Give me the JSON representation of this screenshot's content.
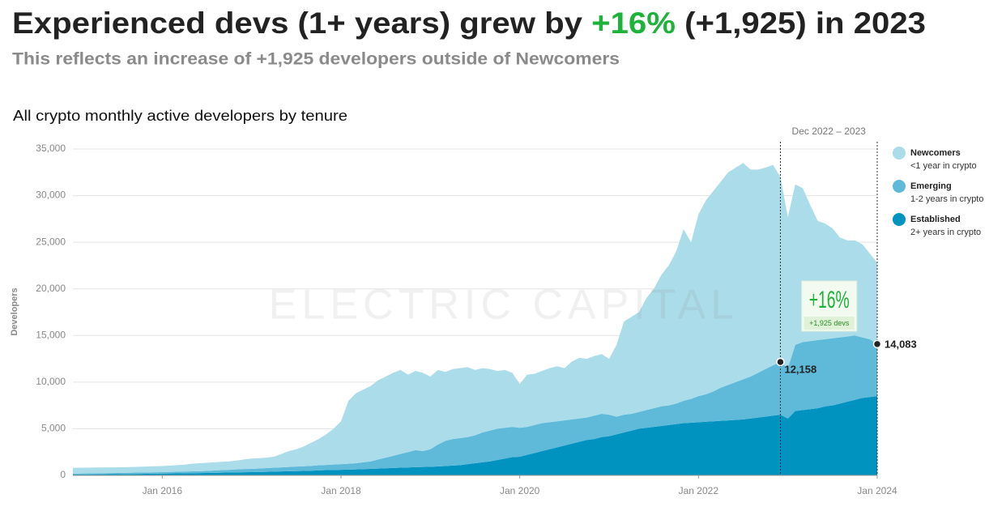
{
  "chart_data": {
    "type": "stacked_area",
    "title": "Experienced devs (1+ years) grew by +16% (+1,925) in 2023",
    "title_highlight": "+16%",
    "highlight_color": "#1db33a",
    "subtitle": "This reflects an increase of +1,925 developers outside of Newcomers",
    "chart_title": "All crypto monthly active developers by tenure",
    "y_label": "Developers",
    "watermark": "ELECTRIC CAPITAL",
    "x": [
      "2015-01",
      "2015-02",
      "2015-03",
      "2015-04",
      "2015-05",
      "2015-06",
      "2015-07",
      "2015-08",
      "2015-09",
      "2015-10",
      "2015-11",
      "2015-12",
      "2016-01",
      "2016-02",
      "2016-03",
      "2016-04",
      "2016-05",
      "2016-06",
      "2016-07",
      "2016-08",
      "2016-09",
      "2016-10",
      "2016-11",
      "2016-12",
      "2017-01",
      "2017-02",
      "2017-03",
      "2017-04",
      "2017-05",
      "2017-06",
      "2017-07",
      "2017-08",
      "2017-09",
      "2017-10",
      "2017-11",
      "2017-12",
      "2018-01",
      "2018-02",
      "2018-03",
      "2018-04",
      "2018-05",
      "2018-06",
      "2018-07",
      "2018-08",
      "2018-09",
      "2018-10",
      "2018-11",
      "2018-12",
      "2019-01",
      "2019-02",
      "2019-03",
      "2019-04",
      "2019-05",
      "2019-06",
      "2019-07",
      "2019-08",
      "2019-09",
      "2019-10",
      "2019-11",
      "2019-12",
      "2020-01",
      "2020-02",
      "2020-03",
      "2020-04",
      "2020-05",
      "2020-06",
      "2020-07",
      "2020-08",
      "2020-09",
      "2020-10",
      "2020-11",
      "2020-12",
      "2021-01",
      "2021-02",
      "2021-03",
      "2021-04",
      "2021-05",
      "2021-06",
      "2021-07",
      "2021-08",
      "2021-09",
      "2021-10",
      "2021-11",
      "2021-12",
      "2022-01",
      "2022-02",
      "2022-03",
      "2022-04",
      "2022-05",
      "2022-06",
      "2022-07",
      "2022-08",
      "2022-09",
      "2022-10",
      "2022-11",
      "2022-12",
      "2023-01",
      "2023-02",
      "2023-03",
      "2023-04",
      "2023-05",
      "2023-06",
      "2023-07",
      "2023-08",
      "2023-09",
      "2023-10",
      "2023-11",
      "2023-12",
      "2024-01"
    ],
    "series": [
      {
        "name": "Newcomers",
        "description": "<1 year in crypto",
        "color": "#abdce9",
        "values": [
          600,
          610,
          610,
          620,
          610,
          610,
          610,
          610,
          610,
          610,
          630,
          640,
          650,
          680,
          710,
          740,
          820,
          850,
          870,
          880,
          890,
          900,
          960,
          1020,
          1100,
          1110,
          1120,
          1180,
          1440,
          1700,
          1860,
          2120,
          2480,
          2820,
          3280,
          3840,
          4600,
          6750,
          7500,
          7800,
          8100,
          8500,
          8700,
          8900,
          9000,
          8300,
          8500,
          8400,
          7800,
          8000,
          7400,
          7500,
          7500,
          7500,
          7000,
          6900,
          6600,
          6200,
          6200,
          5800,
          4700,
          5600,
          5500,
          5600,
          5800,
          5900,
          5600,
          6200,
          6500,
          6300,
          6400,
          6400,
          6000,
          7700,
          10000,
          10400,
          10700,
          12000,
          12800,
          14100,
          15000,
          16300,
          18400,
          16800,
          19500,
          20800,
          21500,
          22100,
          22800,
          23000,
          23200,
          22200,
          21800,
          21600,
          21500,
          19842,
          16200,
          17200,
          16500,
          14600,
          12800,
          12400,
          11800,
          10700,
          10300,
          10200,
          10000,
          9200,
          8717
        ]
      },
      {
        "name": "Emerging",
        "description": "1-2 years in crypto",
        "color": "#5ebad8",
        "values": [
          100,
          105,
          110,
          115,
          120,
          125,
          130,
          130,
          140,
          150,
          150,
          160,
          150,
          160,
          170,
          180,
          190,
          200,
          220,
          250,
          270,
          290,
          320,
          340,
          350,
          380,
          400,
          420,
          440,
          460,
          480,
          500,
          520,
          550,
          560,
          580,
          600,
          630,
          660,
          730,
          800,
          970,
          1140,
          1310,
          1480,
          1650,
          1820,
          1700,
          1880,
          2350,
          2700,
          2850,
          2900,
          2900,
          3000,
          3200,
          3300,
          3350,
          3300,
          3250,
          3100,
          3000,
          3000,
          3000,
          2900,
          2800,
          2700,
          2600,
          2500,
          2400,
          2500,
          2500,
          2300,
          1900,
          1900,
          1800,
          1800,
          1900,
          2000,
          2100,
          2100,
          2200,
          2400,
          2550,
          2800,
          2950,
          3200,
          3550,
          3800,
          4050,
          4300,
          4500,
          4800,
          5100,
          5400,
          5658,
          5400,
          7100,
          7300,
          7300,
          7300,
          7200,
          7200,
          7100,
          7000,
          6900,
          6500,
          6200,
          5583
        ]
      },
      {
        "name": "Established",
        "description": "2+ years in crypto",
        "color": "#0093bf",
        "values": [
          100,
          105,
          110,
          115,
          120,
          125,
          130,
          140,
          150,
          160,
          170,
          180,
          200,
          210,
          220,
          230,
          240,
          250,
          260,
          270,
          290,
          310,
          320,
          340,
          350,
          360,
          380,
          400,
          420,
          440,
          460,
          480,
          500,
          530,
          560,
          580,
          600,
          620,
          640,
          670,
          700,
          730,
          760,
          790,
          820,
          850,
          880,
          900,
          920,
          950,
          1000,
          1050,
          1100,
          1200,
          1300,
          1400,
          1500,
          1650,
          1800,
          1950,
          2000,
          2200,
          2400,
          2600,
          2800,
          3000,
          3200,
          3400,
          3600,
          3800,
          3900,
          4100,
          4200,
          4400,
          4600,
          4800,
          5000,
          5100,
          5200,
          5300,
          5400,
          5500,
          5600,
          5650,
          5700,
          5750,
          5800,
          5850,
          5900,
          5950,
          6000,
          6100,
          6200,
          6300,
          6400,
          6500,
          6100,
          6900,
          7000,
          7100,
          7200,
          7400,
          7500,
          7700,
          7900,
          8100,
          8300,
          8400,
          8500
        ]
      }
    ],
    "xlim": [
      "2015-01",
      "2024-01"
    ],
    "xticks": [
      {
        "value": "2016-01",
        "label": "Jan 2016"
      },
      {
        "value": "2018-01",
        "label": "Jan 2018"
      },
      {
        "value": "2020-01",
        "label": "Jan 2020"
      },
      {
        "value": "2022-01",
        "label": "Jan 2022"
      },
      {
        "value": "2024-01",
        "label": "Jan 2024"
      }
    ],
    "ylim": [
      0,
      35000
    ],
    "yticks": [
      0,
      {
        "value": 5000,
        "label": "5,000"
      },
      {
        "value": 10000,
        "label": "10,000"
      },
      {
        "value": 15000,
        "label": "15,000"
      },
      {
        "value": 20000,
        "label": "20,000"
      },
      {
        "value": 25000,
        "label": "25,000"
      },
      {
        "value": 30000,
        "label": "30,000"
      },
      {
        "value": 35000,
        "label": "35,000"
      }
    ],
    "grid": true,
    "legend": "right",
    "period": {
      "start": "2022-12",
      "end": "2024-01",
      "label": "Dec 2022 – 2023"
    },
    "markers": [
      {
        "x": "2022-12",
        "value": 12158,
        "label": "12,158"
      },
      {
        "x": "2024-01",
        "value": 14083,
        "label": "14,083"
      }
    ],
    "callout": {
      "headline": "+16%",
      "note": "+1,925 devs"
    }
  }
}
